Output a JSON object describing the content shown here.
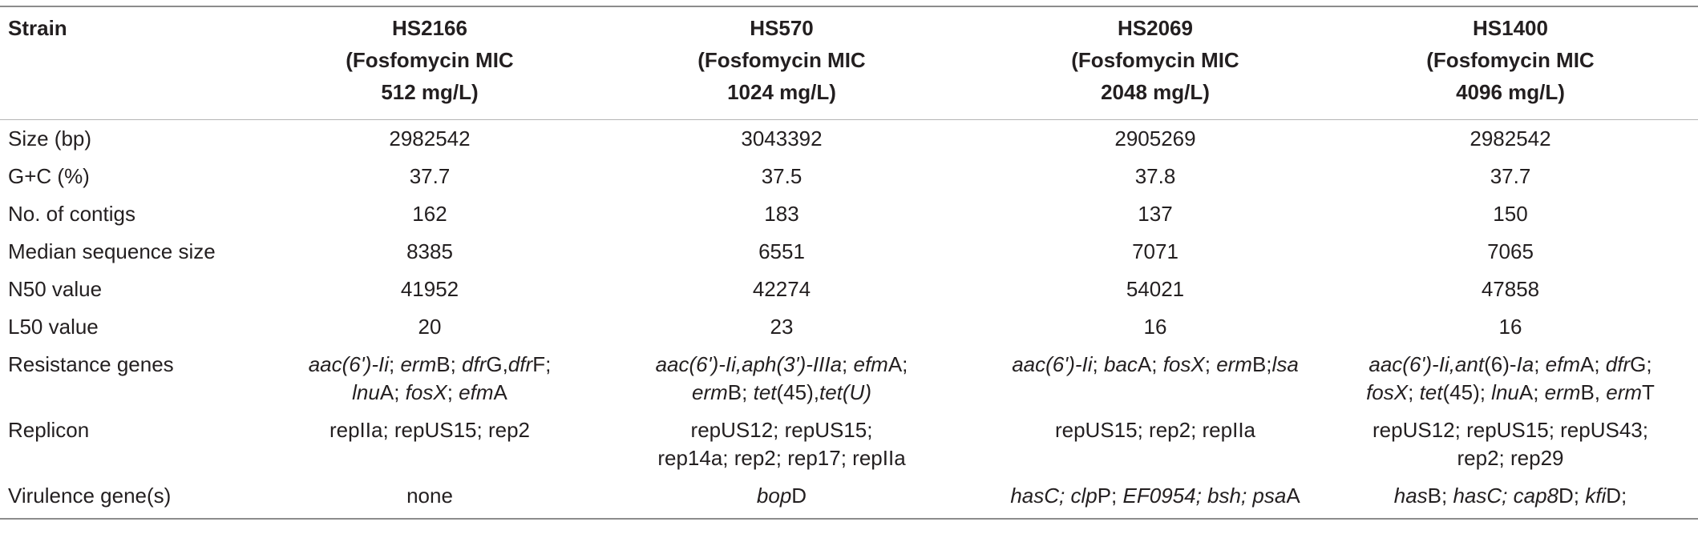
{
  "table": {
    "header": [
      "Strain",
      "HS2166\n(Fosfomycin MIC\n512 mg/L)",
      "HS570\n(Fosfomycin MIC\n1024 mg/L)",
      "HS2069\n(Fosfomycin MIC\n2048 mg/L)",
      "HS1400\n(Fosfomycin MIC\n4096 mg/L)"
    ],
    "rows": [
      [
        "Size (bp)",
        "2982542",
        "3043392",
        "2905269",
        "2982542"
      ],
      [
        "G+C (%)",
        "37.7",
        "37.5",
        "37.8",
        "37.7"
      ],
      [
        "No. of contigs",
        "162",
        "183",
        "137",
        "150"
      ],
      [
        "Median sequence size",
        "8385",
        "6551",
        "7071",
        "7065"
      ],
      [
        "N50 value",
        "41952",
        "42274",
        "54021",
        "47858"
      ],
      [
        "L50 value",
        "20",
        "23",
        "16",
        "16"
      ],
      [
        "Resistance genes",
        [
          {
            "text": "aac(6')-Ii",
            "italic": true
          },
          {
            "text": "; ",
            "italic": false
          },
          {
            "text": "erm",
            "italic": true
          },
          {
            "text": "B; ",
            "italic": false
          },
          {
            "text": "dfr",
            "italic": true
          },
          {
            "text": "G,",
            "italic": false
          },
          {
            "text": "dfr",
            "italic": true
          },
          {
            "text": "F;",
            "italic": false
          },
          {
            "text": "\nlnu",
            "italic": true
          },
          {
            "text": "A; ",
            "italic": false
          },
          {
            "text": "fosX",
            "italic": true
          },
          {
            "text": "; ",
            "italic": false
          },
          {
            "text": "efm",
            "italic": true
          },
          {
            "text": "A",
            "italic": false
          }
        ],
        [
          {
            "text": "aac(6')-Ii,aph(3')-IIIa",
            "italic": true
          },
          {
            "text": "; ",
            "italic": false
          },
          {
            "text": "efm",
            "italic": true
          },
          {
            "text": "A;",
            "italic": false
          },
          {
            "text": "\nerm",
            "italic": true
          },
          {
            "text": "B; ",
            "italic": false
          },
          {
            "text": "tet",
            "italic": true
          },
          {
            "text": "(45),",
            "italic": false
          },
          {
            "text": "tet(U)",
            "italic": true
          }
        ],
        [
          {
            "text": "aac(6')-Ii",
            "italic": true
          },
          {
            "text": "; ",
            "italic": false
          },
          {
            "text": "bac",
            "italic": true
          },
          {
            "text": "A; ",
            "italic": false
          },
          {
            "text": "fosX",
            "italic": true
          },
          {
            "text": "; ",
            "italic": false
          },
          {
            "text": "erm",
            "italic": true
          },
          {
            "text": "B;",
            "italic": false
          },
          {
            "text": "lsa",
            "italic": true
          }
        ],
        [
          {
            "text": "aac(6')-Ii,ant",
            "italic": true
          },
          {
            "text": "(6)-",
            "italic": false
          },
          {
            "text": "Ia",
            "italic": true
          },
          {
            "text": "; ",
            "italic": false
          },
          {
            "text": "efm",
            "italic": true
          },
          {
            "text": "A; ",
            "italic": false
          },
          {
            "text": "dfr",
            "italic": true
          },
          {
            "text": "G;",
            "italic": false
          },
          {
            "text": "\nfosX",
            "italic": true
          },
          {
            "text": "; ",
            "italic": false
          },
          {
            "text": "tet",
            "italic": true
          },
          {
            "text": "(45); ",
            "italic": false
          },
          {
            "text": "lnu",
            "italic": true
          },
          {
            "text": "A; ",
            "italic": false
          },
          {
            "text": "erm",
            "italic": true
          },
          {
            "text": "B, ",
            "italic": false
          },
          {
            "text": "erm",
            "italic": true
          },
          {
            "text": "T",
            "italic": false
          }
        ]
      ],
      [
        "Replicon",
        "repIIa; repUS15; rep2",
        "repUS12; repUS15;\nrep14a; rep2; rep17; repIIa",
        "repUS15; rep2; repIIa",
        "repUS12; repUS15; repUS43;\nrep2; rep29"
      ],
      [
        "Virulence gene(s)",
        "none",
        [
          {
            "text": "bop",
            "italic": true
          },
          {
            "text": "D",
            "italic": false
          }
        ],
        [
          {
            "text": "hasC; clp",
            "italic": true
          },
          {
            "text": "P; ",
            "italic": false
          },
          {
            "text": "EF0954; bsh; psa",
            "italic": true
          },
          {
            "text": "A",
            "italic": false
          }
        ],
        [
          {
            "text": "has",
            "italic": true
          },
          {
            "text": "B; ",
            "italic": false
          },
          {
            "text": "hasC; cap8",
            "italic": true
          },
          {
            "text": "D; ",
            "italic": false
          },
          {
            "text": "kfi",
            "italic": true
          },
          {
            "text": "D;",
            "italic": false
          }
        ]
      ]
    ]
  }
}
